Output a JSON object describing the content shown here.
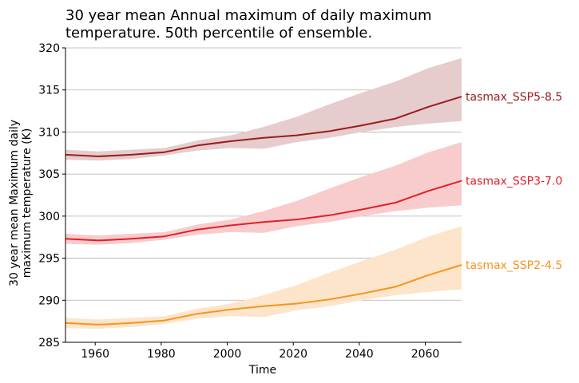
{
  "chart_data": {
    "type": "line",
    "title": "30 year mean Annual maximum of daily maximum temperature. 50th percentile of ensemble.",
    "title_lines": [
      "30 year mean Annual maximum of daily maximum",
      "temperature. 50th percentile of ensemble."
    ],
    "xlabel": "Time",
    "ylabel": "30 year mean Maximum daily maximum temperature (K)",
    "ylabel_lines": [
      "30 year mean Maximum daily",
      "maximum temperature (K)"
    ],
    "xlim": [
      1951,
      2071
    ],
    "ylim": [
      285,
      320
    ],
    "xticks": [
      1960,
      1980,
      2000,
      2020,
      2040,
      2060
    ],
    "yticks": [
      285,
      290,
      295,
      300,
      305,
      310,
      315,
      320
    ],
    "grid": "horizontal",
    "legend": "inline labels at right end of each series",
    "series": [
      {
        "name": "tasmax_SSP5-8.5",
        "color": "#9c1c1c",
        "band_color": "#e6cccc",
        "x": [
          1951,
          1961,
          1971,
          1981,
          1991,
          2001,
          2011,
          2021,
          2031,
          2041,
          2051,
          2061,
          2071
        ],
        "values": [
          307.3,
          307.1,
          307.3,
          307.6,
          308.4,
          308.9,
          309.3,
          309.6,
          310.1,
          310.8,
          311.6,
          313.0,
          314.2
        ],
        "upper": [
          307.9,
          307.7,
          307.9,
          308.1,
          309.0,
          309.6,
          310.6,
          311.8,
          313.3,
          314.7,
          316.0,
          317.6,
          318.8
        ],
        "lower": [
          306.7,
          306.6,
          306.8,
          307.2,
          307.8,
          308.1,
          308.0,
          308.8,
          309.3,
          310.0,
          310.6,
          311.0,
          311.3
        ]
      },
      {
        "name": "tasmax_SSP3-7.0",
        "color": "#e21f26",
        "band_color": "#f8cccd",
        "x": [
          1951,
          1961,
          1971,
          1981,
          1991,
          2001,
          2011,
          2021,
          2031,
          2041,
          2051,
          2061,
          2071
        ],
        "values": [
          297.3,
          297.1,
          297.3,
          297.6,
          298.4,
          298.9,
          299.3,
          299.6,
          300.1,
          300.8,
          301.6,
          303.0,
          304.2
        ],
        "upper": [
          297.9,
          297.7,
          297.9,
          298.1,
          299.0,
          299.6,
          300.6,
          301.8,
          303.3,
          304.7,
          306.0,
          307.6,
          308.8
        ],
        "lower": [
          296.7,
          296.6,
          296.8,
          297.2,
          297.8,
          298.1,
          298.0,
          298.8,
          299.3,
          300.0,
          300.6,
          301.0,
          301.3
        ]
      },
      {
        "name": "tasmax_SSP2-4.5",
        "color": "#f7941d",
        "band_color": "#fde5cb",
        "x": [
          1951,
          1961,
          1971,
          1981,
          1991,
          2001,
          2011,
          2021,
          2031,
          2041,
          2051,
          2061,
          2071
        ],
        "values": [
          287.3,
          287.1,
          287.3,
          287.6,
          288.4,
          288.9,
          289.3,
          289.6,
          290.1,
          290.8,
          291.6,
          293.0,
          294.2
        ],
        "upper": [
          287.9,
          287.7,
          287.9,
          288.1,
          289.0,
          289.6,
          290.6,
          291.8,
          293.3,
          294.7,
          296.0,
          297.6,
          298.8
        ],
        "lower": [
          286.7,
          286.6,
          286.8,
          287.2,
          287.8,
          288.1,
          288.0,
          288.8,
          289.3,
          290.0,
          290.6,
          291.0,
          291.3
        ]
      }
    ]
  }
}
